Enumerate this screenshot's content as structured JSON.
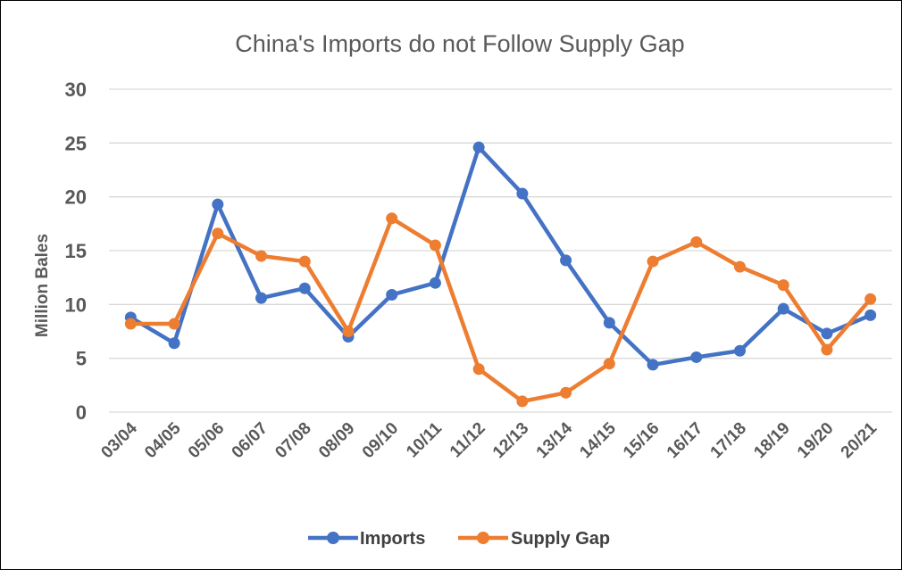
{
  "chart_data": {
    "type": "line",
    "title": "China's Imports do not Follow Supply Gap",
    "ylabel": "Million Bales",
    "xlabel": "",
    "ylim": [
      0,
      30
    ],
    "yticks": [
      0,
      5,
      10,
      15,
      20,
      25,
      30
    ],
    "grid": true,
    "legend_position": "bottom",
    "categories": [
      "03/04",
      "04/05",
      "05/06",
      "06/07",
      "07/08",
      "08/09",
      "09/10",
      "10/11",
      "11/12",
      "12/13",
      "13/14",
      "14/15",
      "15/16",
      "16/17",
      "17/18",
      "18/19",
      "19/20",
      "20/21"
    ],
    "series": [
      {
        "name": "Imports",
        "color": "#4472C4",
        "values": [
          8.8,
          6.4,
          19.3,
          10.6,
          11.5,
          7.0,
          10.9,
          12.0,
          24.6,
          20.3,
          14.1,
          8.3,
          4.4,
          5.1,
          5.7,
          9.6,
          7.3,
          9.0
        ]
      },
      {
        "name": "Supply Gap",
        "color": "#ED7D31",
        "values": [
          8.2,
          8.2,
          16.6,
          14.5,
          14.0,
          7.5,
          18.0,
          15.5,
          4.0,
          1.0,
          1.8,
          4.5,
          14.0,
          15.8,
          13.5,
          11.8,
          5.8,
          10.5
        ]
      }
    ]
  }
}
